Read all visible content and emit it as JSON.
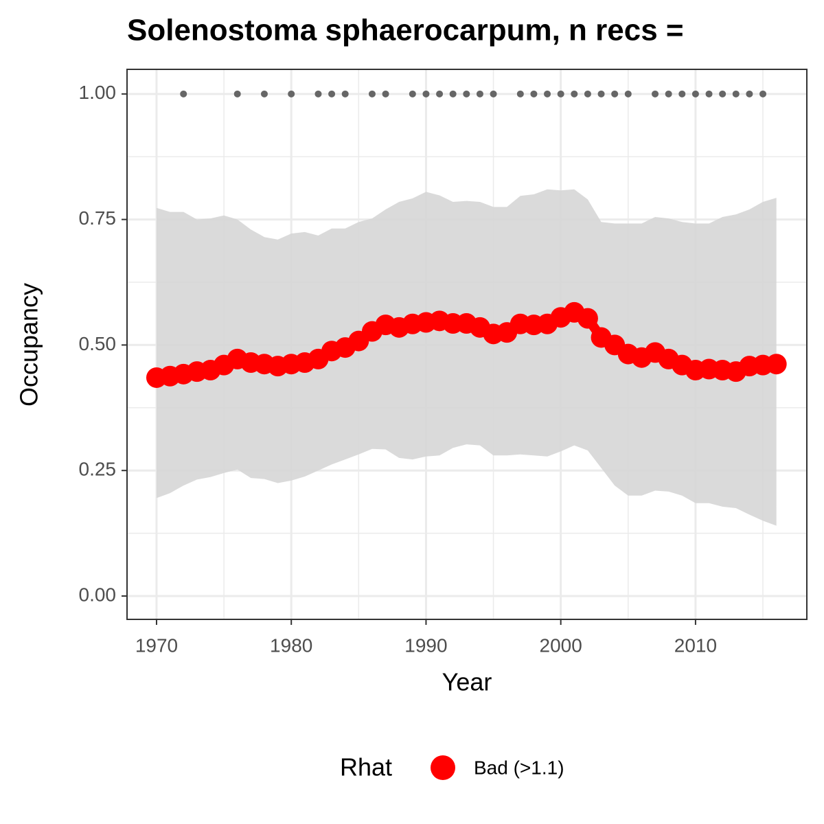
{
  "chart_data": {
    "type": "line",
    "title": "Solenostoma sphaerocarpum, n recs =",
    "x_label": "Year",
    "y_label": "Occupancy",
    "legend_title": "Rhat",
    "legend": "bottom",
    "grid": true,
    "xlim": [
      1967.81,
      2018.26
    ],
    "ylim": [
      -0.0465,
      1.049
    ],
    "xticks": [
      1970,
      1980,
      1990,
      2000,
      2010
    ],
    "xminorticks": [
      1975,
      1985,
      1995,
      2005,
      2015
    ],
    "yticks": [
      {
        "value": 0,
        "label": "0.00"
      },
      {
        "value": 0.25,
        "label": "0.25"
      },
      {
        "value": 0.5,
        "label": "0.50"
      },
      {
        "value": 0.75,
        "label": "0.75"
      },
      {
        "value": 1,
        "label": "1.00"
      }
    ],
    "yminorticks": [
      0.125,
      0.375,
      0.625,
      0.875
    ],
    "x": [
      1970,
      1971,
      1972,
      1973,
      1974,
      1975,
      1976,
      1977,
      1978,
      1979,
      1980,
      1981,
      1982,
      1983,
      1984,
      1985,
      1986,
      1987,
      1988,
      1989,
      1990,
      1991,
      1992,
      1993,
      1994,
      1995,
      1996,
      1997,
      1998,
      1999,
      2000,
      2001,
      2002,
      2003,
      2004,
      2005,
      2006,
      2007,
      2008,
      2009,
      2010,
      2011,
      2012,
      2013,
      2014,
      2015,
      2016
    ],
    "series": [
      {
        "name": "Bad (>1.1)",
        "color": "#ff0000",
        "values": [
          0.435,
          0.438,
          0.442,
          0.447,
          0.45,
          0.46,
          0.472,
          0.465,
          0.462,
          0.458,
          0.462,
          0.465,
          0.472,
          0.488,
          0.495,
          0.508,
          0.527,
          0.54,
          0.535,
          0.542,
          0.545,
          0.548,
          0.543,
          0.543,
          0.535,
          0.522,
          0.525,
          0.542,
          0.54,
          0.542,
          0.555,
          0.565,
          0.553,
          0.515,
          0.5,
          0.482,
          0.475,
          0.485,
          0.472,
          0.46,
          0.45,
          0.452,
          0.45,
          0.447,
          0.458,
          0.46,
          0.462
        ]
      }
    ],
    "band": {
      "color": "#d6d6d6",
      "upper": [
        0.773,
        0.765,
        0.765,
        0.75,
        0.752,
        0.758,
        0.75,
        0.73,
        0.715,
        0.71,
        0.722,
        0.725,
        0.718,
        0.732,
        0.732,
        0.745,
        0.752,
        0.77,
        0.785,
        0.792,
        0.805,
        0.798,
        0.785,
        0.787,
        0.785,
        0.775,
        0.775,
        0.797,
        0.8,
        0.81,
        0.808,
        0.81,
        0.79,
        0.745,
        0.742,
        0.742,
        0.742,
        0.755,
        0.752,
        0.745,
        0.742,
        0.742,
        0.755,
        0.76,
        0.77,
        0.785,
        0.793
      ],
      "lower": [
        0.195,
        0.205,
        0.22,
        0.232,
        0.237,
        0.245,
        0.252,
        0.235,
        0.233,
        0.225,
        0.23,
        0.238,
        0.25,
        0.262,
        0.272,
        0.282,
        0.293,
        0.292,
        0.275,
        0.272,
        0.278,
        0.28,
        0.295,
        0.302,
        0.3,
        0.28,
        0.28,
        0.282,
        0.28,
        0.278,
        0.288,
        0.3,
        0.29,
        0.255,
        0.22,
        0.2,
        0.2,
        0.21,
        0.208,
        0.2,
        0.185,
        0.185,
        0.178,
        0.175,
        0.162,
        0.15,
        0.14
      ]
    },
    "records": {
      "color": "#666666",
      "x": [
        1972,
        1976,
        1978,
        1980,
        1982,
        1983,
        1984,
        1986,
        1987,
        1989,
        1990,
        1991,
        1992,
        1993,
        1994,
        1995,
        1997,
        1998,
        1999,
        2000,
        2001,
        2002,
        2003,
        2004,
        2005,
        2007,
        2008,
        2009,
        2010,
        2011,
        2012,
        2013,
        2014,
        2015
      ],
      "values": [
        1,
        1,
        1,
        1,
        1,
        1,
        1,
        1,
        1,
        1,
        1,
        1,
        1,
        1,
        1,
        1,
        1,
        1,
        1,
        1,
        1,
        1,
        1,
        1,
        1,
        1,
        1,
        1,
        1,
        1,
        1,
        1,
        1,
        1
      ]
    }
  }
}
